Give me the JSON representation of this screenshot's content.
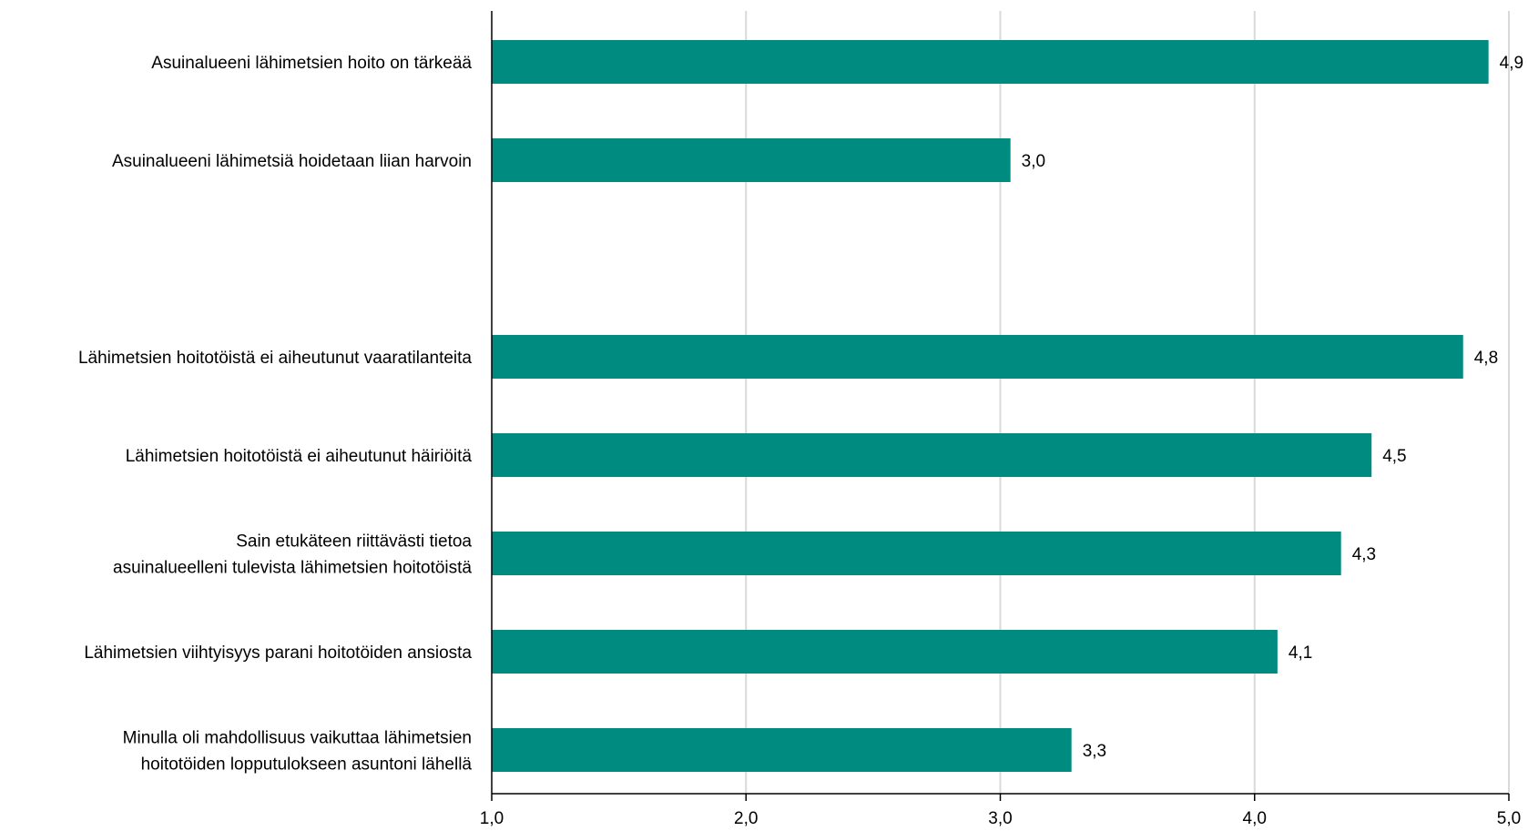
{
  "chart_data": {
    "type": "bar",
    "orientation": "horizontal",
    "title": "",
    "xlabel": "",
    "ylabel": "",
    "xlim": [
      1.0,
      5.0
    ],
    "ticks": [
      "1,0",
      "2,0",
      "3,0",
      "4,0",
      "5,0"
    ],
    "tick_values": [
      1.0,
      2.0,
      3.0,
      4.0,
      5.0
    ],
    "grid": true,
    "bar_color": "#008B80",
    "categories": [
      [
        "Asuinalueeni lähimetsien hoito on tärkeää"
      ],
      [
        "Asuinalueeni lähimetsiä hoidetaan liian harvoin"
      ],
      [
        ""
      ],
      [
        "Lähimetsien hoitotöistä ei aiheutunut vaaratilanteita"
      ],
      [
        "Lähimetsien hoitotöistä ei aiheutunut häiriöitä"
      ],
      [
        "Sain etukäteen riittävästi tietoa",
        "asuinalueelleni tulevista lähimetsien hoitotöistä"
      ],
      [
        "Lähimetsien viihtyisyys parani hoitotöiden ansiosta"
      ],
      [
        "Minulla oli mahdollisuus vaikuttaa lähimetsien",
        "hoitotöiden lopputulokseen asuntoni lähellä"
      ]
    ],
    "values": [
      4.92,
      3.04,
      null,
      4.82,
      4.46,
      4.34,
      4.09,
      3.28
    ],
    "value_labels": [
      "4,9",
      "3,0",
      "",
      "4,8",
      "4,5",
      "4,3",
      "4,1",
      "3,3"
    ]
  }
}
